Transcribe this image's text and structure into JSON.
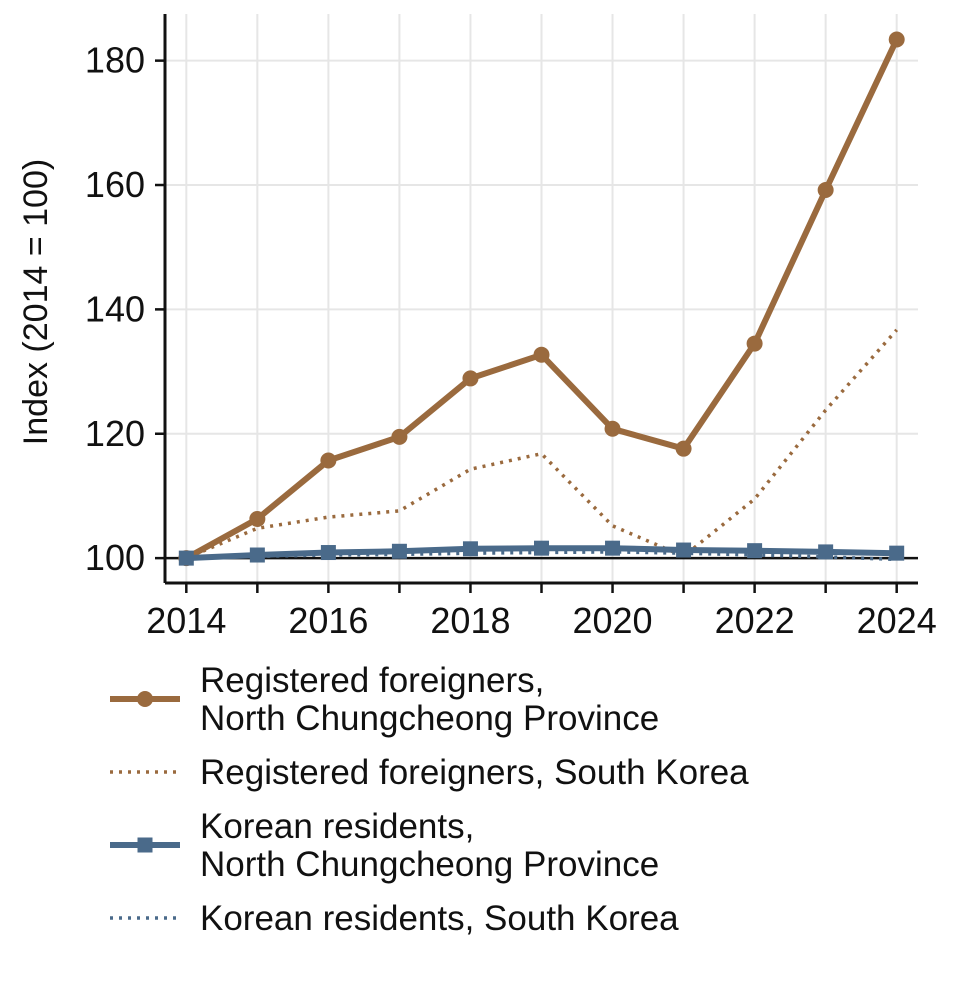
{
  "chart_data": {
    "type": "line",
    "title": "",
    "xlabel": "",
    "ylabel": "Index (2014 = 100)",
    "x": [
      2014,
      2015,
      2016,
      2017,
      2018,
      2019,
      2020,
      2021,
      2022,
      2023,
      2024
    ],
    "xticks": [
      "2014",
      "2016",
      "2018",
      "2020",
      "2022",
      "2024"
    ],
    "yticks": [
      "100",
      "120",
      "140",
      "160",
      "180"
    ],
    "xlim": [
      2013.7,
      2024.3
    ],
    "ylim": [
      96.0,
      187.5
    ],
    "grid": true,
    "legend_position": "bottom",
    "reference_line": 100,
    "series": [
      {
        "name": [
          "Registered foreigners,",
          "North Chungcheong Province"
        ],
        "values": [
          100,
          106.3,
          115.7,
          119.5,
          128.9,
          132.7,
          120.8,
          117.6,
          134.5,
          159.2,
          183.4
        ],
        "color": "#9a6a3e",
        "style": "solid",
        "marker": "circle"
      },
      {
        "name": [
          "Registered foreigners, South Korea"
        ],
        "values": [
          100,
          104.8,
          106.6,
          107.6,
          114.3,
          116.8,
          105.2,
          100.3,
          109.5,
          123.8,
          136.7
        ],
        "color": "#9a6a3e",
        "style": "dotted",
        "marker": "none"
      },
      {
        "name": [
          "Korean residents,",
          "North Chungcheong Province"
        ],
        "values": [
          100,
          100.5,
          100.9,
          101.1,
          101.5,
          101.6,
          101.6,
          101.3,
          101.2,
          101.0,
          100.8
        ],
        "color": "#4a6a8a",
        "style": "solid",
        "marker": "square"
      },
      {
        "name": [
          "Korean residents, South Korea"
        ],
        "values": [
          100,
          100.3,
          100.5,
          100.6,
          100.8,
          100.9,
          101.0,
          100.8,
          100.5,
          100.2,
          99.8
        ],
        "color": "#4a6a8a",
        "style": "dotted",
        "marker": "none"
      }
    ]
  }
}
